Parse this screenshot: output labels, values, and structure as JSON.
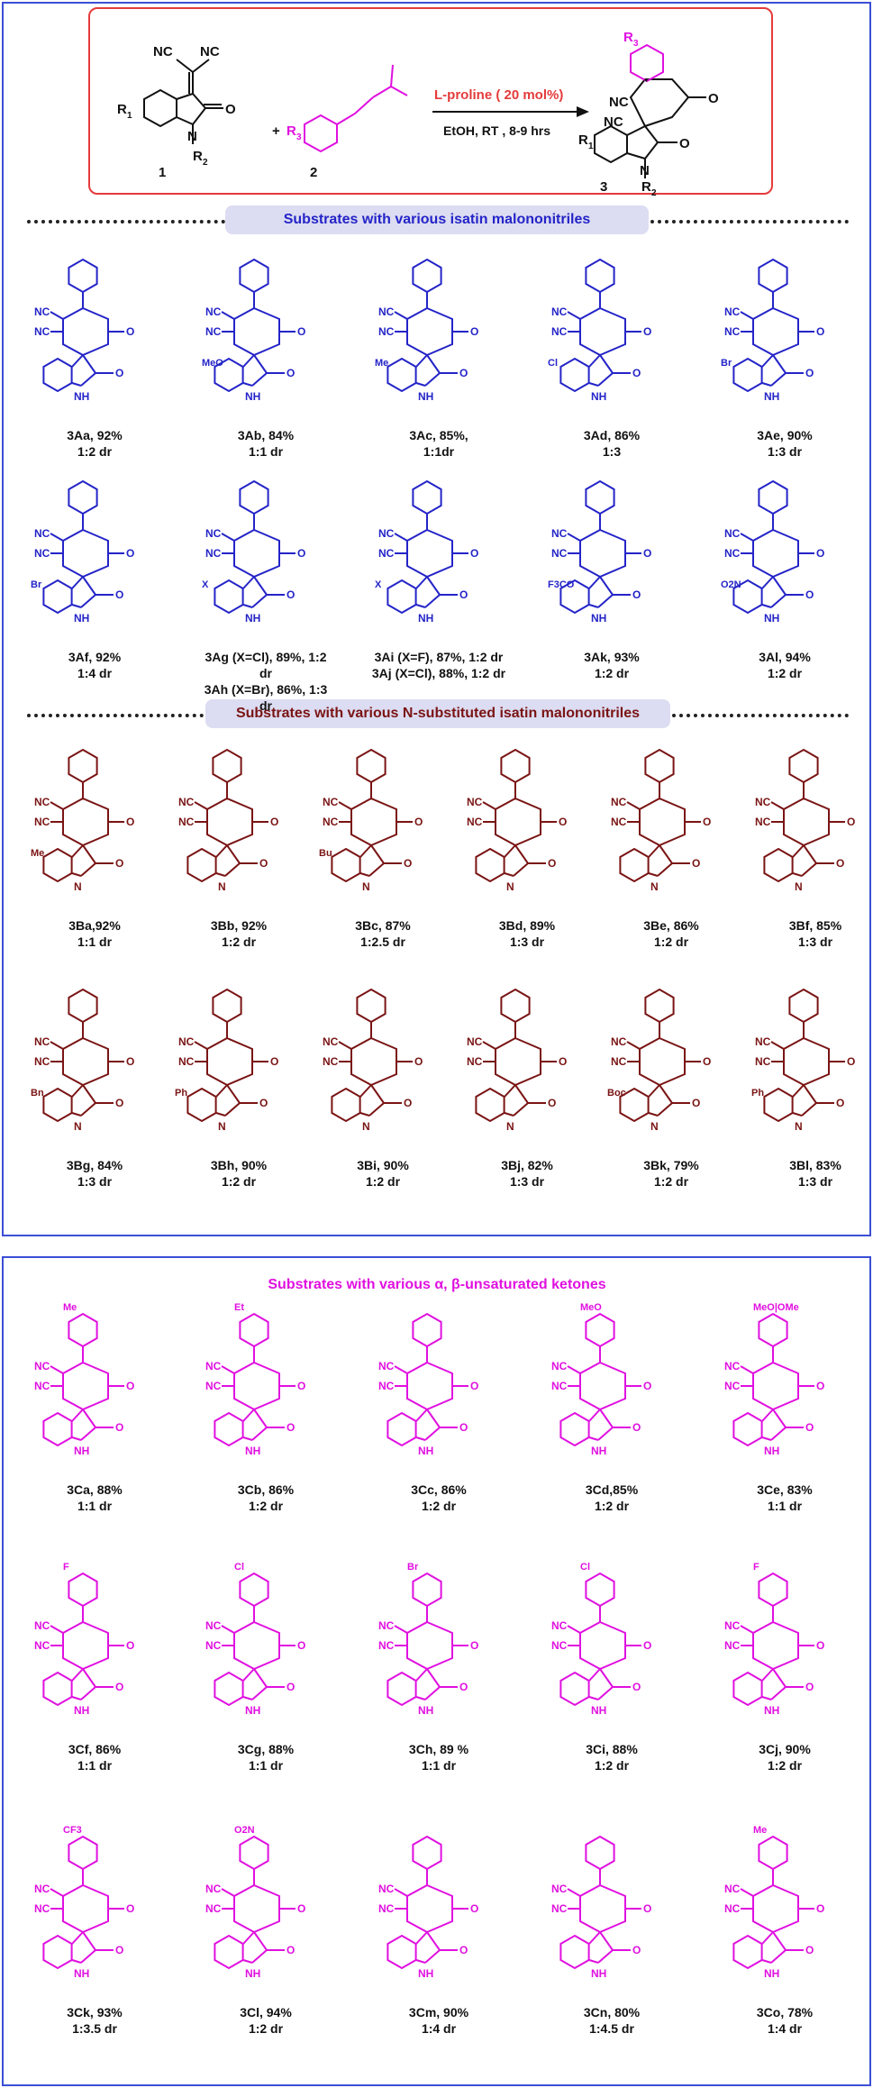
{
  "scheme": {
    "reactant1_label": "1",
    "reactant2_label": "2",
    "product_label": "3",
    "plus": "+",
    "catalyst": "L-proline ( 20 mol%)",
    "conditions": "EtOH, RT , 8-9 hrs",
    "sub_R1": "R",
    "sub_R1_index": "1",
    "sub_R2": "R",
    "sub_R2_index": "2",
    "sub_R3": "R",
    "sub_R3_index": "3"
  },
  "headings": {
    "isatin": "Substrates with various isatin malononitriles",
    "n_substituted": "Substrates with various N-substituted isatin malononitriles",
    "ketones": "Substrates with various α, β-unsaturated ketones"
  },
  "atoms": {
    "NC": "NC",
    "O": "O",
    "NH": "NH",
    "N": "N",
    "H": "H"
  },
  "colors": {
    "blue": "#2424c8",
    "maroon": "#7a1414",
    "magenta": "#e010e0",
    "red": "#e53b3b",
    "frame": "#3b4fd6"
  },
  "groups": {
    "A": [
      {
        "line1": "3Aa, 92%",
        "line2": "1:2 dr",
        "sub": ""
      },
      {
        "line1": "3Ab, 84%",
        "line2": "1:1 dr",
        "sub": "MeO"
      },
      {
        "line1": "3Ac, 85%,",
        "line2": "1:1dr",
        "sub": "Me"
      },
      {
        "line1": "3Ad, 86%",
        "line2": "1:3",
        "sub": "Cl"
      },
      {
        "line1": "3Ae, 90%",
        "line2": "1:3 dr",
        "sub": "Br"
      },
      {
        "line1": "3Af, 92%",
        "line2": "1:4 dr",
        "sub": "Br"
      },
      {
        "line1": "3Ag (X=Cl), 89%, 1:2 dr",
        "line2": "3Ah (X=Br), 86%, 1:3 dr",
        "sub": "X"
      },
      {
        "line1": "3Ai (X=F), 87%, 1:2 dr",
        "line2": "3Aj (X=Cl), 88%, 1:2 dr",
        "sub": "X"
      },
      {
        "line1": "3Ak, 93%",
        "line2": "1:2 dr",
        "sub": "F3CO"
      },
      {
        "line1": "3Al, 94%",
        "line2": "1:2 dr",
        "sub": "O2N"
      }
    ],
    "B": [
      {
        "line1": "3Ba,92%",
        "line2": "1:1 dr",
        "sub": "Me"
      },
      {
        "line1": "3Bb, 92%",
        "line2": "1:2 dr",
        "sub": ""
      },
      {
        "line1": "3Bc, 87%",
        "line2": "1:2.5 dr",
        "sub": "Bu"
      },
      {
        "line1": "3Bd, 89%",
        "line2": "1:3 dr",
        "sub": ""
      },
      {
        "line1": "3Be, 86%",
        "line2": "1:2 dr",
        "sub": ""
      },
      {
        "line1": "3Bf, 85%",
        "line2": "1:3 dr",
        "sub": ""
      },
      {
        "line1": "3Bg, 84%",
        "line2": "1:3 dr",
        "sub": "Bn"
      },
      {
        "line1": "3Bh, 90%",
        "line2": "1:2 dr",
        "sub": "Ph"
      },
      {
        "line1": "3Bi, 90%",
        "line2": "1:2 dr",
        "sub": ""
      },
      {
        "line1": "3Bj, 82%",
        "line2": "1:3 dr",
        "sub": ""
      },
      {
        "line1": "3Bk, 79%",
        "line2": "1:2 dr",
        "sub": "Boc"
      },
      {
        "line1": "3Bl, 83%",
        "line2": "1:3 dr",
        "sub": "Ph"
      }
    ],
    "C": [
      {
        "line1": "3Ca, 88%",
        "line2": "1:1 dr",
        "sub": "Me"
      },
      {
        "line1": "3Cb, 86%",
        "line2": "1:2 dr",
        "sub": "Et"
      },
      {
        "line1": "3Cc, 86%",
        "line2": "1:2 dr",
        "sub": ""
      },
      {
        "line1": "3Cd,85%",
        "line2": "1:2 dr",
        "sub": "MeO"
      },
      {
        "line1": "3Ce, 83%",
        "line2": "1:1 dr",
        "sub": "MeO|OMe"
      },
      {
        "line1": "3Cf, 86%",
        "line2": "1:1 dr",
        "sub": "F"
      },
      {
        "line1": "3Cg, 88%",
        "line2": "1:1 dr",
        "sub": "Cl"
      },
      {
        "line1": "3Ch, 89 %",
        "line2": "1:1 dr",
        "sub": "Br"
      },
      {
        "line1": "3Ci, 88%",
        "line2": "1:2 dr",
        "sub": "Cl"
      },
      {
        "line1": "3Cj, 90%",
        "line2": "1:2 dr",
        "sub": "F"
      },
      {
        "line1": "3Ck, 93%",
        "line2": "1:3.5 dr",
        "sub": "CF3"
      },
      {
        "line1": "3Cl, 94%",
        "line2": "1:2 dr",
        "sub": "O2N"
      },
      {
        "line1": "3Cm, 90%",
        "line2": "1:4 dr",
        "sub": ""
      },
      {
        "line1": "3Cn, 80%",
        "line2": "1:4.5 dr",
        "sub": ""
      },
      {
        "line1": "3Co, 78%",
        "line2": "1:4 dr",
        "sub": "Me"
      }
    ]
  }
}
